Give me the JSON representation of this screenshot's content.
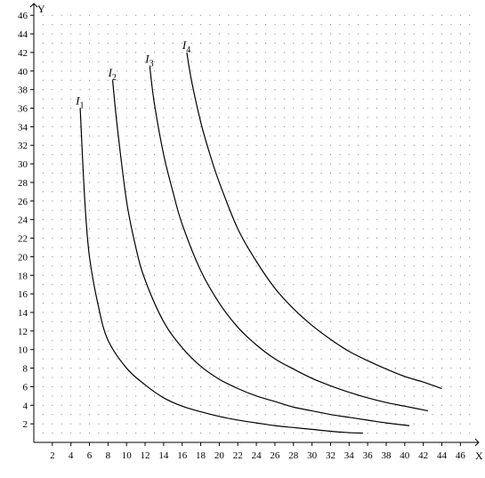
{
  "chart_data": {
    "type": "line",
    "title": "",
    "xlabel": "X",
    "ylabel": "Y",
    "xlim": [
      0,
      48
    ],
    "ylim": [
      0,
      47
    ],
    "grid": "dotted",
    "x_ticks": [
      2,
      4,
      6,
      8,
      10,
      12,
      14,
      16,
      18,
      20,
      22,
      24,
      26,
      28,
      30,
      32,
      34,
      36,
      38,
      40,
      42,
      44,
      46
    ],
    "y_ticks": [
      2,
      4,
      6,
      8,
      10,
      12,
      14,
      16,
      18,
      20,
      22,
      24,
      26,
      28,
      30,
      32,
      34,
      36,
      38,
      40,
      42,
      44,
      46
    ],
    "series": [
      {
        "name": "I1",
        "label_main": "I",
        "label_sub": "1",
        "x": [
          5,
          5.5,
          6,
          7,
          8,
          10,
          12,
          14,
          16,
          18,
          20,
          22,
          24,
          26,
          28,
          30,
          32,
          34,
          35.5
        ],
        "y": [
          36,
          26,
          20,
          14.5,
          11,
          8,
          6.2,
          4.8,
          3.9,
          3.3,
          2.8,
          2.4,
          2.1,
          1.8,
          1.6,
          1.4,
          1.2,
          1.05,
          1
        ]
      },
      {
        "name": "I2",
        "label_main": "I",
        "label_sub": "2",
        "x": [
          8.5,
          9,
          10,
          11,
          12,
          14,
          16,
          18,
          20,
          22,
          24,
          26,
          28,
          30,
          32,
          34,
          36,
          38,
          40.5
        ],
        "y": [
          39,
          34,
          26,
          21,
          17.5,
          13,
          10.2,
          8.2,
          6.8,
          5.8,
          5,
          4.4,
          3.8,
          3.4,
          3,
          2.7,
          2.4,
          2.1,
          1.8
        ]
      },
      {
        "name": "I3",
        "label_main": "I",
        "label_sub": "3",
        "x": [
          12.5,
          13,
          14,
          15,
          16,
          18,
          20,
          22,
          24,
          26,
          28,
          30,
          32,
          34,
          36,
          38,
          40,
          42.5
        ],
        "y": [
          40.5,
          36.5,
          31,
          27,
          23.5,
          18.5,
          15,
          12.4,
          10.5,
          9,
          7.9,
          6.9,
          6.1,
          5.4,
          4.8,
          4.3,
          3.9,
          3.4
        ]
      },
      {
        "name": "I4",
        "label_main": "I",
        "label_sub": "4",
        "x": [
          16.5,
          17,
          18,
          19,
          20,
          22,
          24,
          26,
          28,
          30,
          32,
          34,
          36,
          38,
          40,
          42,
          44
        ],
        "y": [
          42,
          39,
          34.5,
          31,
          28,
          23,
          19.5,
          16.6,
          14.4,
          12.6,
          11.1,
          9.8,
          8.8,
          7.9,
          7.1,
          6.5,
          5.8
        ]
      }
    ]
  }
}
